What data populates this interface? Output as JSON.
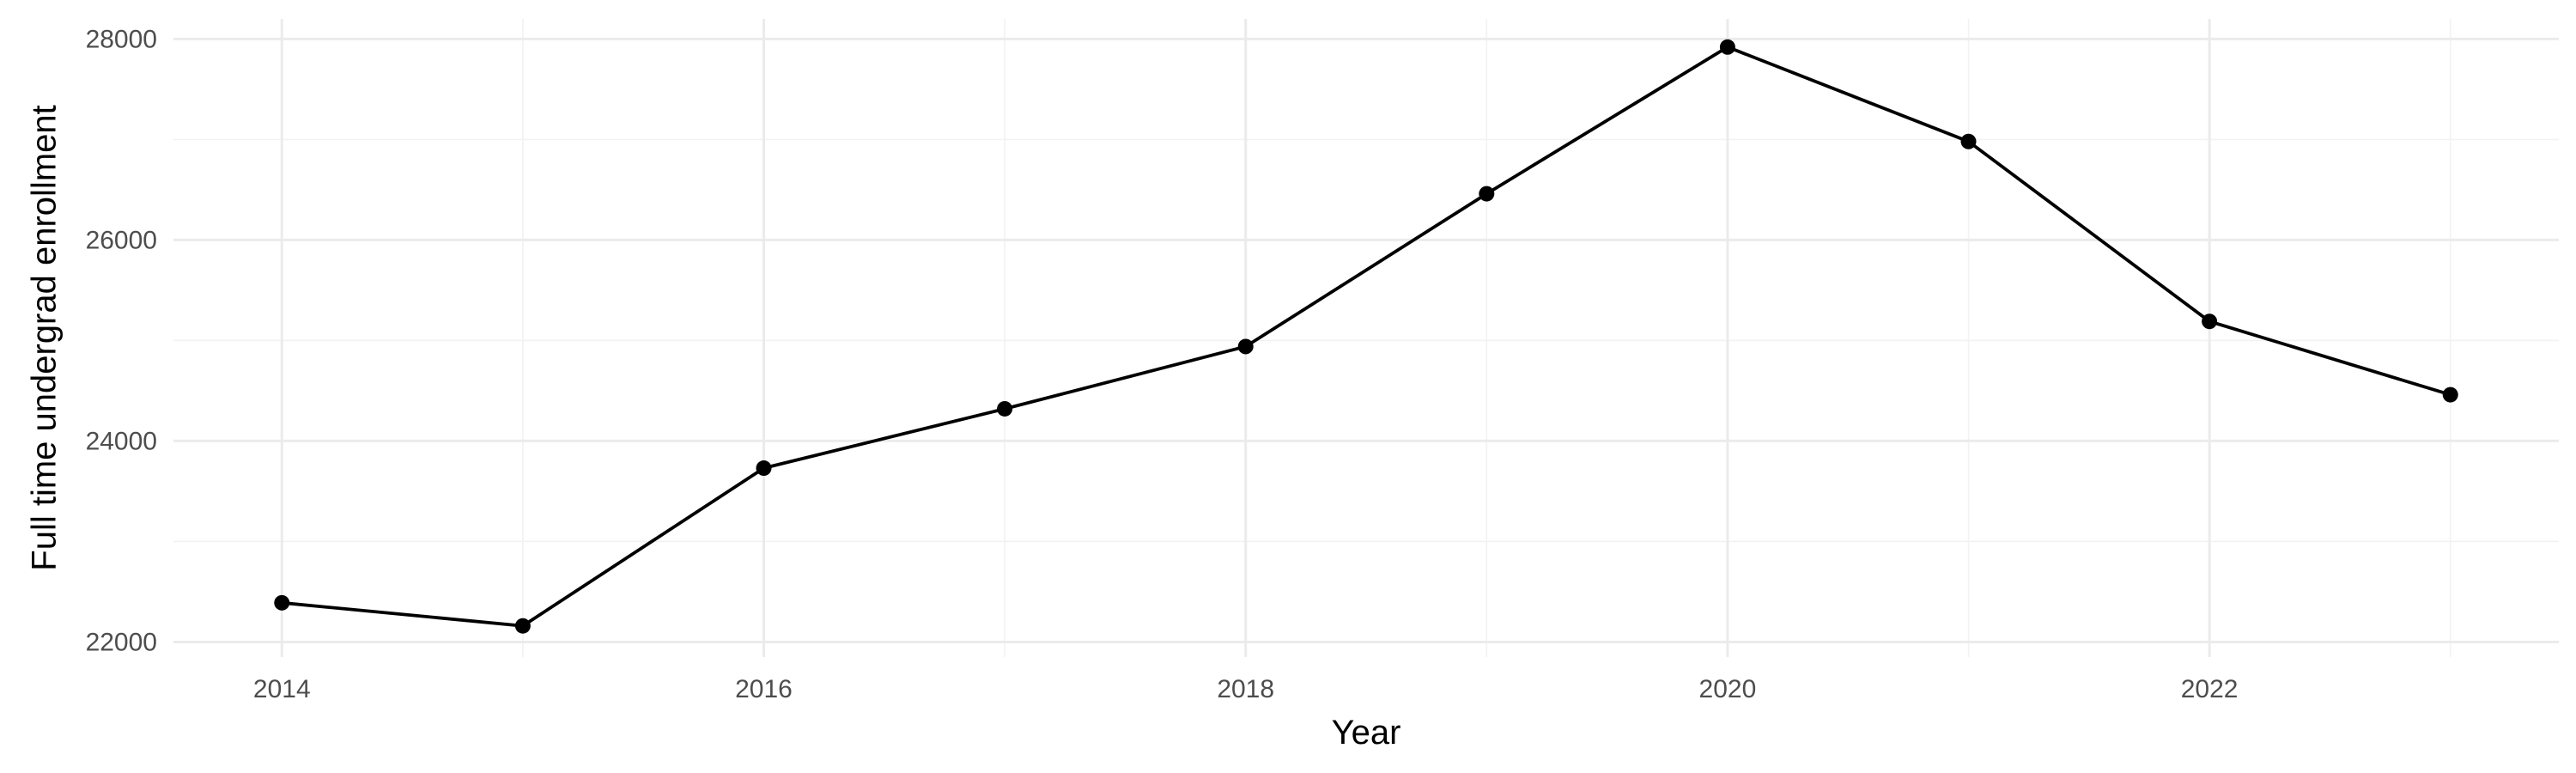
{
  "chart_data": {
    "type": "line",
    "title": "",
    "xlabel": "Year",
    "ylabel": "Full time undergrad enrollment",
    "x": [
      2014,
      2015,
      2016,
      2017,
      2018,
      2019,
      2020,
      2021,
      2022,
      2023
    ],
    "series": [
      {
        "values": [
          22390,
          22160,
          23730,
          24320,
          24940,
          26460,
          27920,
          26980,
          25190,
          24460
        ]
      }
    ],
    "xlim": [
      2013.55,
      2023.45
    ],
    "ylim": [
      21850,
      28200
    ],
    "x_ticks": [
      2014,
      2016,
      2018,
      2020,
      2022
    ],
    "x_tick_labels": [
      "2014",
      "2016",
      "2018",
      "2020",
      "2022"
    ],
    "y_ticks": [
      22000,
      24000,
      26000,
      28000
    ],
    "y_tick_labels": [
      "22000",
      "24000",
      "26000",
      "28000"
    ],
    "grid": true,
    "legend": "none",
    "colors": {
      "line": "#000000",
      "points": "#000000",
      "grid_major": "#ebebeb",
      "grid_minor": "#f2f2f2",
      "tick_text": "#4d4d4d",
      "background": "#ffffff"
    }
  }
}
